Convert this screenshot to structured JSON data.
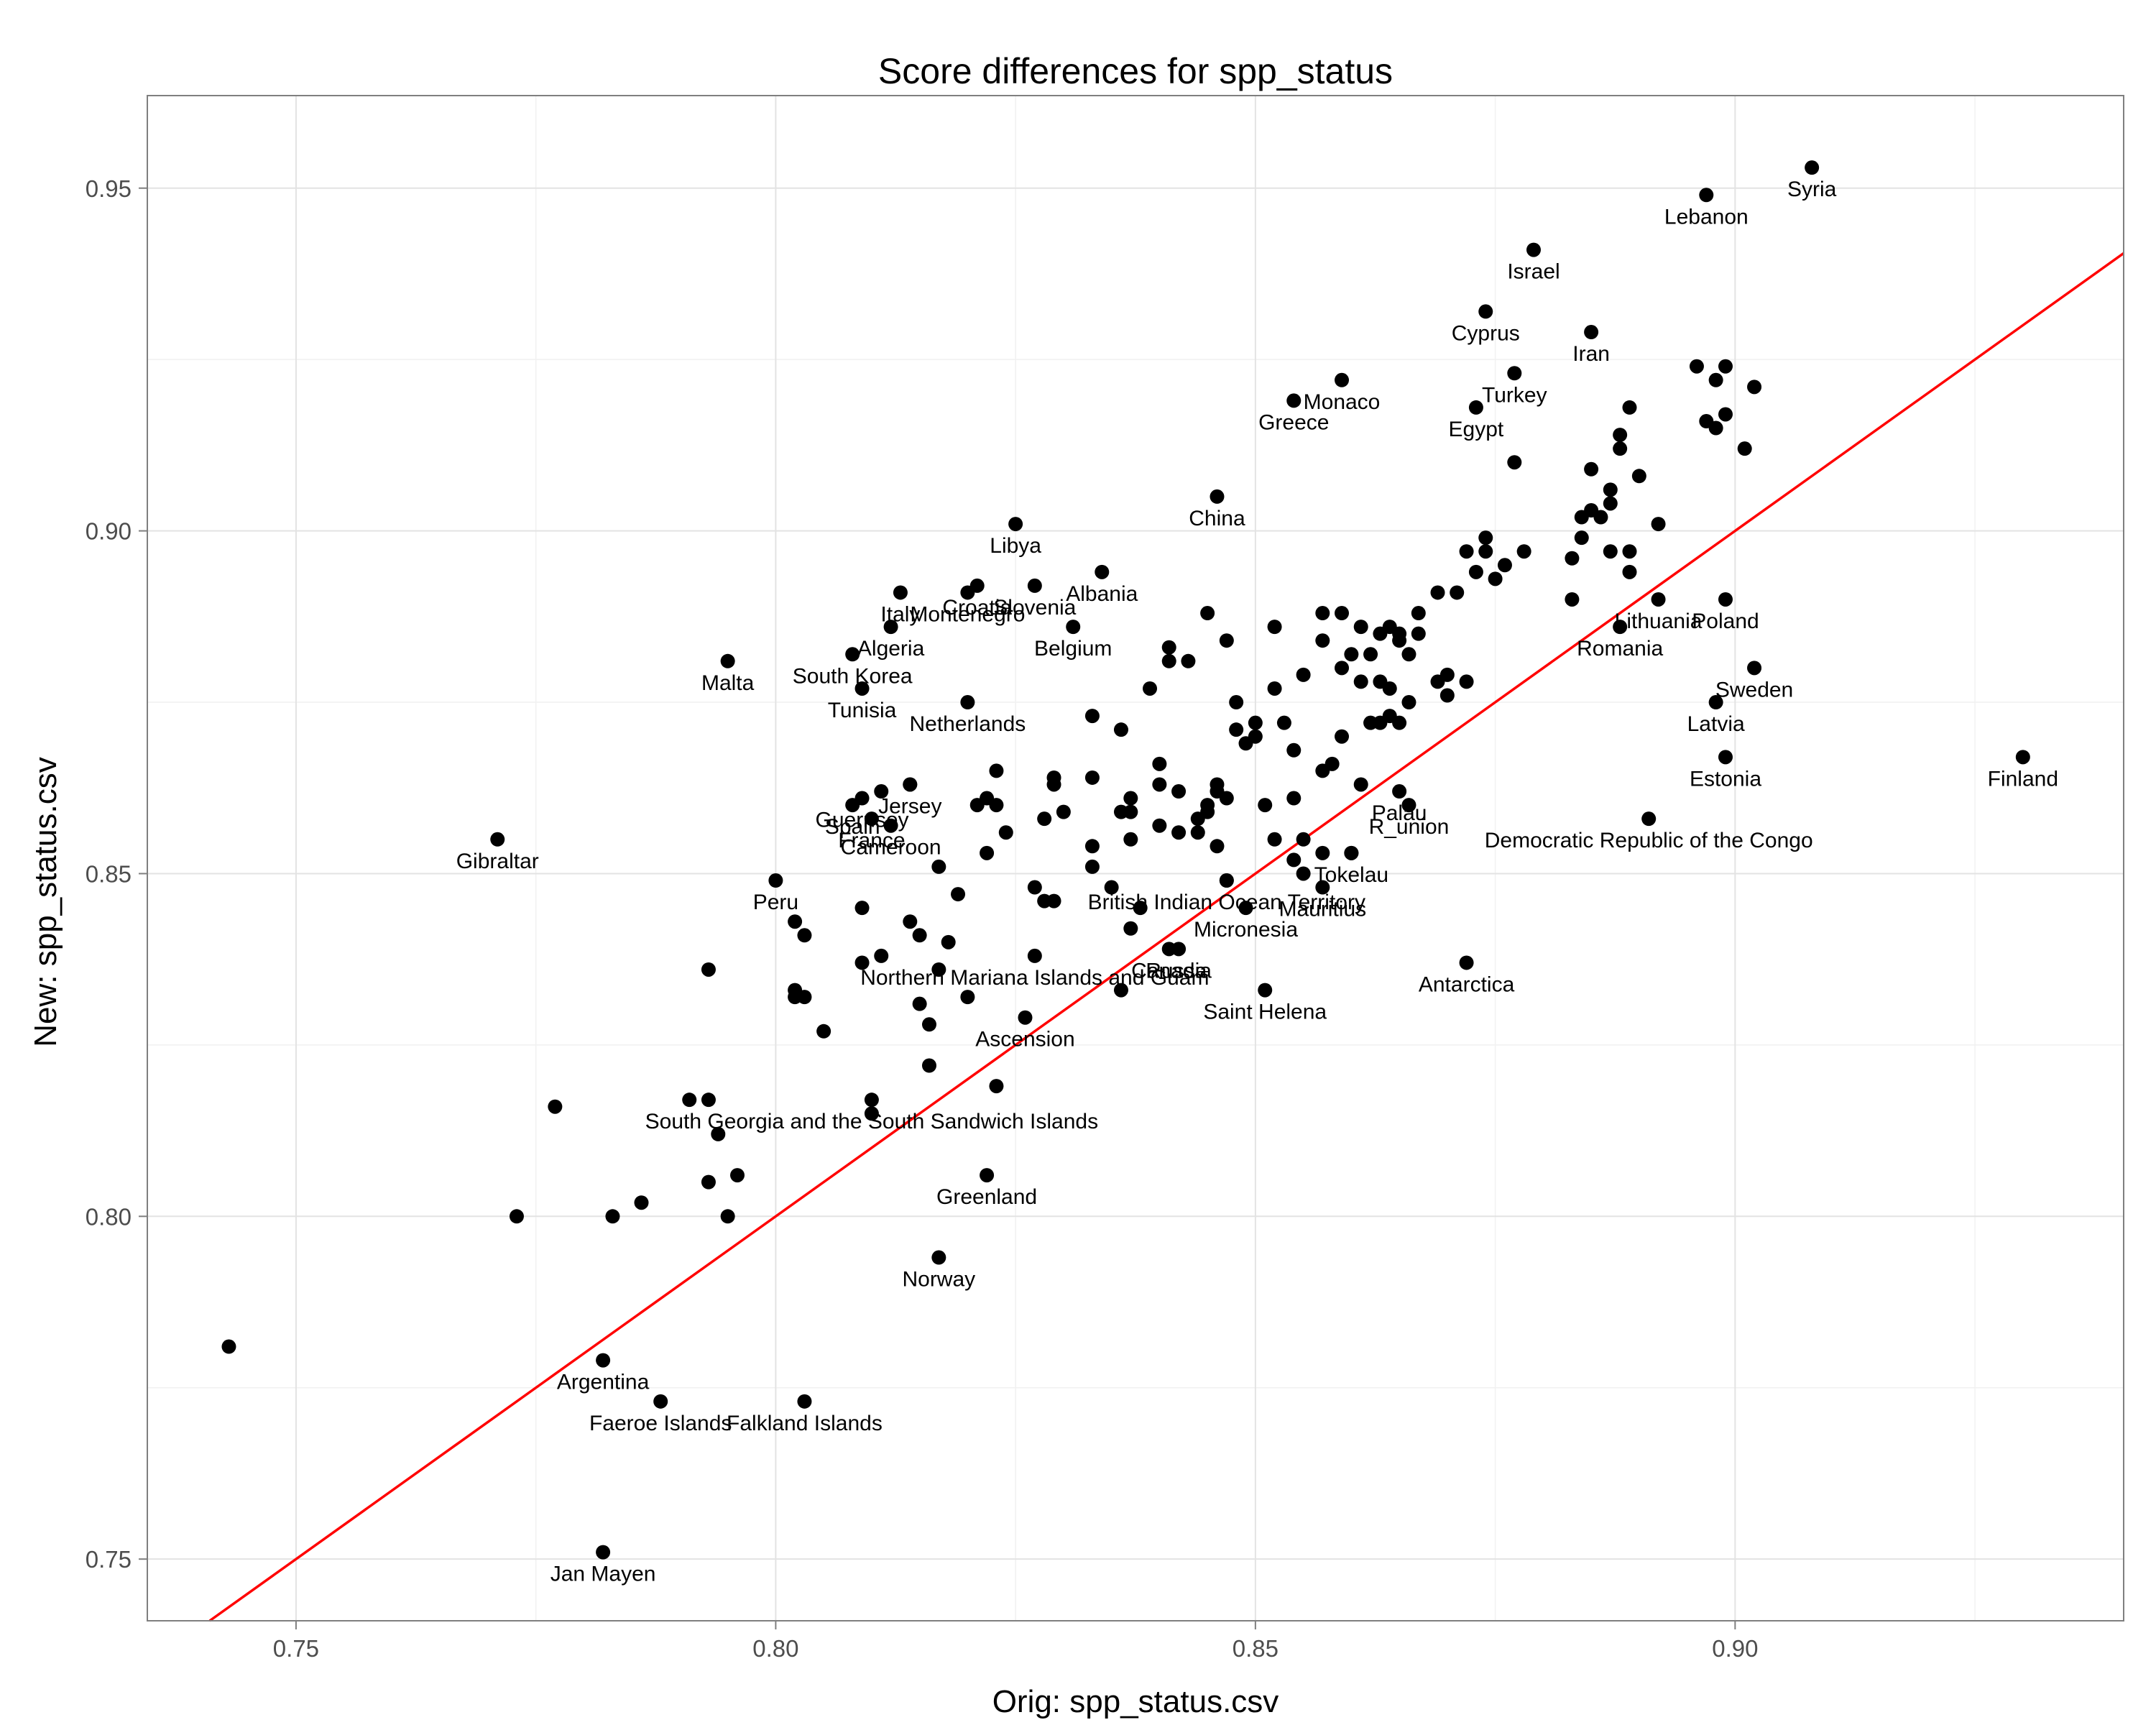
{
  "chart_data": {
    "type": "scatter",
    "title": "Score differences for spp_status",
    "xlabel": "Orig: spp_status.csv",
    "ylabel": "New: spp_status.csv",
    "xlim": [
      0.7345,
      0.9405
    ],
    "ylim": [
      0.741,
      0.9635
    ],
    "x_ticks": [
      0.75,
      0.8,
      0.85,
      0.9
    ],
    "y_ticks": [
      0.75,
      0.8,
      0.85,
      0.9,
      0.95
    ],
    "x_tick_labels": [
      "0.75",
      "0.80",
      "0.85",
      "0.90"
    ],
    "y_tick_labels": [
      "0.75",
      "0.80",
      "0.85",
      "0.90",
      "0.95"
    ],
    "grid": true,
    "reference_line": {
      "slope": 1,
      "intercept": 0,
      "color": "#ff0000"
    },
    "point_color": "#000000",
    "labeled_points": [
      {
        "label": "Syria",
        "x": 0.908,
        "y": 0.953
      },
      {
        "label": "Lebanon",
        "x": 0.897,
        "y": 0.949
      },
      {
        "label": "Israel",
        "x": 0.879,
        "y": 0.941
      },
      {
        "label": "Cyprus",
        "x": 0.874,
        "y": 0.932
      },
      {
        "label": "Iran",
        "x": 0.885,
        "y": 0.929
      },
      {
        "label": "Turkey",
        "x": 0.877,
        "y": 0.923
      },
      {
        "label": "Egypt",
        "x": 0.873,
        "y": 0.918
      },
      {
        "label": "Monaco",
        "x": 0.859,
        "y": 0.922
      },
      {
        "label": "Greece",
        "x": 0.854,
        "y": 0.919
      },
      {
        "label": "China",
        "x": 0.846,
        "y": 0.905
      },
      {
        "label": "Libya",
        "x": 0.825,
        "y": 0.901
      },
      {
        "label": "Albania",
        "x": 0.834,
        "y": 0.894
      },
      {
        "label": "Slovenia",
        "x": 0.827,
        "y": 0.892
      },
      {
        "label": "Croatia",
        "x": 0.821,
        "y": 0.892
      },
      {
        "label": "Italy",
        "x": 0.813,
        "y": 0.891
      },
      {
        "label": "Montenegro",
        "x": 0.82,
        "y": 0.891
      },
      {
        "label": "Belgium",
        "x": 0.831,
        "y": 0.886
      },
      {
        "label": "Algeria",
        "x": 0.812,
        "y": 0.886
      },
      {
        "label": "Malta",
        "x": 0.795,
        "y": 0.881
      },
      {
        "label": "South Korea",
        "x": 0.808,
        "y": 0.882
      },
      {
        "label": "Tunisia",
        "x": 0.809,
        "y": 0.877
      },
      {
        "label": "Netherlands",
        "x": 0.82,
        "y": 0.875
      },
      {
        "label": "Jersey",
        "x": 0.814,
        "y": 0.863
      },
      {
        "label": "Guernsey",
        "x": 0.809,
        "y": 0.861
      },
      {
        "label": "Spain",
        "x": 0.808,
        "y": 0.86
      },
      {
        "label": "France",
        "x": 0.81,
        "y": 0.858
      },
      {
        "label": "Cameroon",
        "x": 0.812,
        "y": 0.857
      },
      {
        "label": "Gibraltar",
        "x": 0.771,
        "y": 0.855
      },
      {
        "label": "Peru",
        "x": 0.8,
        "y": 0.849
      },
      {
        "label": "Lithuania",
        "x": 0.892,
        "y": 0.89
      },
      {
        "label": "Poland",
        "x": 0.899,
        "y": 0.89
      },
      {
        "label": "Romania",
        "x": 0.888,
        "y": 0.886
      },
      {
        "label": "Sweden",
        "x": 0.902,
        "y": 0.88
      },
      {
        "label": "Latvia",
        "x": 0.898,
        "y": 0.875
      },
      {
        "label": "Estonia",
        "x": 0.899,
        "y": 0.867
      },
      {
        "label": "Finland",
        "x": 0.93,
        "y": 0.867
      },
      {
        "label": "R_union",
        "x": 0.866,
        "y": 0.86
      },
      {
        "label": "Palau",
        "x": 0.865,
        "y": 0.862
      },
      {
        "label": "Democratic Republic of the Congo",
        "x": 0.891,
        "y": 0.858
      },
      {
        "label": "British Indian Ocean Territory",
        "x": 0.847,
        "y": 0.849
      },
      {
        "label": "Mauritius",
        "x": 0.857,
        "y": 0.848
      },
      {
        "label": "Tokelau",
        "x": 0.86,
        "y": 0.853
      },
      {
        "label": "Micronesia",
        "x": 0.849,
        "y": 0.845
      },
      {
        "label": "Russia",
        "x": 0.842,
        "y": 0.839
      },
      {
        "label": "Canada",
        "x": 0.841,
        "y": 0.839
      },
      {
        "label": "Northern Mariana Islands and Guam",
        "x": 0.827,
        "y": 0.838
      },
      {
        "label": "Saint Helena",
        "x": 0.851,
        "y": 0.833
      },
      {
        "label": "Antarctica",
        "x": 0.872,
        "y": 0.837
      },
      {
        "label": "Ascension",
        "x": 0.826,
        "y": 0.829
      },
      {
        "label": "South Georgia and the South Sandwich Islands",
        "x": 0.81,
        "y": 0.817
      },
      {
        "label": "Greenland",
        "x": 0.822,
        "y": 0.806
      },
      {
        "label": "Norway",
        "x": 0.817,
        "y": 0.794
      },
      {
        "label": "Argentina",
        "x": 0.782,
        "y": 0.779
      },
      {
        "label": "Faeroe Islands",
        "x": 0.788,
        "y": 0.773
      },
      {
        "label": "Falkland Islands",
        "x": 0.803,
        "y": 0.773
      },
      {
        "label": "Jan Mayen",
        "x": 0.782,
        "y": 0.751
      }
    ],
    "unlabeled_points": [
      [
        0.743,
        0.781
      ],
      [
        0.773,
        0.8
      ],
      [
        0.777,
        0.816
      ],
      [
        0.783,
        0.8
      ],
      [
        0.786,
        0.802
      ],
      [
        0.791,
        0.817
      ],
      [
        0.793,
        0.805
      ],
      [
        0.793,
        0.817
      ],
      [
        0.793,
        0.836
      ],
      [
        0.794,
        0.812
      ],
      [
        0.795,
        0.8
      ],
      [
        0.796,
        0.806
      ],
      [
        0.802,
        0.843
      ],
      [
        0.802,
        0.833
      ],
      [
        0.802,
        0.832
      ],
      [
        0.803,
        0.841
      ],
      [
        0.803,
        0.832
      ],
      [
        0.805,
        0.827
      ],
      [
        0.809,
        0.837
      ],
      [
        0.809,
        0.845
      ],
      [
        0.81,
        0.815
      ],
      [
        0.811,
        0.838
      ],
      [
        0.811,
        0.862
      ],
      [
        0.814,
        0.863
      ],
      [
        0.814,
        0.843
      ],
      [
        0.815,
        0.841
      ],
      [
        0.815,
        0.831
      ],
      [
        0.816,
        0.822
      ],
      [
        0.816,
        0.828
      ],
      [
        0.817,
        0.851
      ],
      [
        0.817,
        0.836
      ],
      [
        0.818,
        0.84
      ],
      [
        0.819,
        0.847
      ],
      [
        0.82,
        0.832
      ],
      [
        0.821,
        0.86
      ],
      [
        0.822,
        0.861
      ],
      [
        0.822,
        0.853
      ],
      [
        0.823,
        0.86
      ],
      [
        0.823,
        0.865
      ],
      [
        0.823,
        0.819
      ],
      [
        0.824,
        0.856
      ],
      [
        0.827,
        0.848
      ],
      [
        0.828,
        0.858
      ],
      [
        0.828,
        0.846
      ],
      [
        0.829,
        0.846
      ],
      [
        0.829,
        0.864
      ],
      [
        0.829,
        0.863
      ],
      [
        0.83,
        0.859
      ],
      [
        0.833,
        0.873
      ],
      [
        0.833,
        0.864
      ],
      [
        0.833,
        0.851
      ],
      [
        0.833,
        0.854
      ],
      [
        0.835,
        0.848
      ],
      [
        0.836,
        0.871
      ],
      [
        0.836,
        0.833
      ],
      [
        0.836,
        0.859
      ],
      [
        0.837,
        0.859
      ],
      [
        0.837,
        0.855
      ],
      [
        0.837,
        0.861
      ],
      [
        0.837,
        0.842
      ],
      [
        0.838,
        0.845
      ],
      [
        0.839,
        0.877
      ],
      [
        0.84,
        0.866
      ],
      [
        0.84,
        0.863
      ],
      [
        0.84,
        0.857
      ],
      [
        0.841,
        0.883
      ],
      [
        0.841,
        0.881
      ],
      [
        0.842,
        0.862
      ],
      [
        0.842,
        0.856
      ],
      [
        0.843,
        0.881
      ],
      [
        0.844,
        0.858
      ],
      [
        0.844,
        0.856
      ],
      [
        0.845,
        0.86
      ],
      [
        0.845,
        0.859
      ],
      [
        0.845,
        0.888
      ],
      [
        0.846,
        0.854
      ],
      [
        0.846,
        0.863
      ],
      [
        0.846,
        0.862
      ],
      [
        0.847,
        0.884
      ],
      [
        0.847,
        0.861
      ],
      [
        0.847,
        0.849
      ],
      [
        0.848,
        0.871
      ],
      [
        0.848,
        0.875
      ],
      [
        0.849,
        0.869
      ],
      [
        0.85,
        0.87
      ],
      [
        0.85,
        0.872
      ],
      [
        0.851,
        0.86
      ],
      [
        0.852,
        0.855
      ],
      [
        0.852,
        0.886
      ],
      [
        0.852,
        0.877
      ],
      [
        0.853,
        0.872
      ],
      [
        0.854,
        0.868
      ],
      [
        0.854,
        0.852
      ],
      [
        0.854,
        0.861
      ],
      [
        0.855,
        0.855
      ],
      [
        0.855,
        0.879
      ],
      [
        0.855,
        0.85
      ],
      [
        0.857,
        0.888
      ],
      [
        0.857,
        0.884
      ],
      [
        0.857,
        0.865
      ],
      [
        0.857,
        0.853
      ],
      [
        0.858,
        0.866
      ],
      [
        0.859,
        0.888
      ],
      [
        0.859,
        0.88
      ],
      [
        0.859,
        0.87
      ],
      [
        0.86,
        0.882
      ],
      [
        0.86,
        0.853
      ],
      [
        0.861,
        0.878
      ],
      [
        0.861,
        0.863
      ],
      [
        0.861,
        0.886
      ],
      [
        0.862,
        0.882
      ],
      [
        0.862,
        0.872
      ],
      [
        0.863,
        0.885
      ],
      [
        0.863,
        0.878
      ],
      [
        0.863,
        0.872
      ],
      [
        0.864,
        0.886
      ],
      [
        0.864,
        0.877
      ],
      [
        0.864,
        0.873
      ],
      [
        0.865,
        0.885
      ],
      [
        0.865,
        0.884
      ],
      [
        0.865,
        0.872
      ],
      [
        0.866,
        0.882
      ],
      [
        0.866,
        0.875
      ],
      [
        0.867,
        0.888
      ],
      [
        0.867,
        0.885
      ],
      [
        0.869,
        0.878
      ],
      [
        0.869,
        0.891
      ],
      [
        0.87,
        0.879
      ],
      [
        0.87,
        0.876
      ],
      [
        0.871,
        0.891
      ],
      [
        0.872,
        0.878
      ],
      [
        0.872,
        0.897
      ],
      [
        0.873,
        0.894
      ],
      [
        0.874,
        0.899
      ],
      [
        0.874,
        0.897
      ],
      [
        0.875,
        0.893
      ],
      [
        0.876,
        0.895
      ],
      [
        0.877,
        0.91
      ],
      [
        0.878,
        0.897
      ],
      [
        0.883,
        0.89
      ],
      [
        0.883,
        0.896
      ],
      [
        0.884,
        0.902
      ],
      [
        0.884,
        0.899
      ],
      [
        0.885,
        0.909
      ],
      [
        0.885,
        0.903
      ],
      [
        0.886,
        0.902
      ],
      [
        0.887,
        0.906
      ],
      [
        0.887,
        0.904
      ],
      [
        0.887,
        0.897
      ],
      [
        0.888,
        0.912
      ],
      [
        0.888,
        0.914
      ],
      [
        0.889,
        0.918
      ],
      [
        0.889,
        0.897
      ],
      [
        0.889,
        0.894
      ],
      [
        0.89,
        0.908
      ],
      [
        0.892,
        0.901
      ],
      [
        0.896,
        0.924
      ],
      [
        0.897,
        0.916
      ],
      [
        0.898,
        0.922
      ],
      [
        0.898,
        0.915
      ],
      [
        0.899,
        0.924
      ],
      [
        0.899,
        0.917
      ],
      [
        0.901,
        0.912
      ],
      [
        0.902,
        0.921
      ]
    ]
  }
}
